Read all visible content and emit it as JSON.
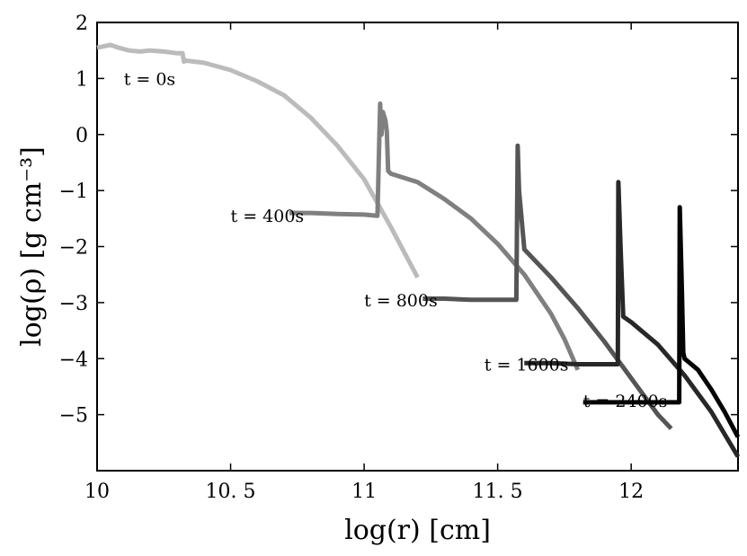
{
  "chart_data": {
    "type": "line",
    "xlabel": "log(r) [cm]",
    "ylabel": "log(ρ) [g cm⁻³]",
    "xlim": [
      10.0,
      12.4
    ],
    "ylim": [
      -6.0,
      2.0
    ],
    "xticks": [
      10.0,
      10.5,
      11.0,
      11.5,
      12.0
    ],
    "xtick_labels": [
      "10",
      "10. 5",
      "11",
      "11. 5",
      "12"
    ],
    "yticks": [
      2,
      1,
      0,
      -1,
      -2,
      -3,
      -4,
      -5
    ],
    "ytick_labels": [
      "2",
      "1",
      "0",
      "−1",
      "−2",
      "−3",
      "−4",
      "−5"
    ],
    "grid": false,
    "series": [
      {
        "name": "t = 0s",
        "color": "#bbbbbb",
        "label_at": [
          10.1,
          1.0
        ],
        "x": [
          10.0,
          10.05,
          10.08,
          10.12,
          10.16,
          10.2,
          10.25,
          10.3,
          10.32,
          10.325,
          10.33,
          10.4,
          10.5,
          10.6,
          10.7,
          10.8,
          10.9,
          11.0,
          11.1,
          11.15,
          11.2
        ],
        "y": [
          1.55,
          1.6,
          1.55,
          1.5,
          1.48,
          1.5,
          1.48,
          1.45,
          1.45,
          1.3,
          1.32,
          1.28,
          1.15,
          0.95,
          0.7,
          0.3,
          -0.2,
          -0.8,
          -1.65,
          -2.1,
          -2.55
        ]
      },
      {
        "name": "t = 400s",
        "color": "#808080",
        "label_at": [
          10.5,
          -1.45
        ],
        "x": [
          10.72,
          10.8,
          10.9,
          11.0,
          11.05,
          11.06,
          11.062,
          11.065,
          11.07,
          11.08,
          11.085,
          11.09,
          11.1,
          11.2,
          11.3,
          11.4,
          11.5,
          11.6,
          11.7,
          11.75,
          11.8
        ],
        "y": [
          -1.4,
          -1.4,
          -1.42,
          -1.43,
          -1.45,
          0.55,
          0.3,
          0.0,
          0.4,
          0.25,
          0.05,
          -0.65,
          -0.7,
          -0.85,
          -1.15,
          -1.5,
          -1.95,
          -2.5,
          -3.2,
          -3.65,
          -4.2
        ]
      },
      {
        "name": "t = 800s",
        "color": "#555555",
        "label_at": [
          11.0,
          -2.95
        ],
        "x": [
          11.22,
          11.3,
          11.4,
          11.5,
          11.57,
          11.575,
          11.58,
          11.6,
          11.7,
          11.8,
          11.9,
          12.0,
          12.1,
          12.15
        ],
        "y": [
          -2.93,
          -2.93,
          -2.95,
          -2.95,
          -2.95,
          -0.2,
          -1.0,
          -2.05,
          -2.55,
          -3.1,
          -3.7,
          -4.35,
          -5.0,
          -5.25
        ]
      },
      {
        "name": "t = 1600s",
        "color": "#282828",
        "label_at": [
          11.45,
          -4.1
        ],
        "x": [
          11.6,
          11.7,
          11.8,
          11.9,
          11.95,
          11.952,
          11.96,
          11.97,
          12.0,
          12.1,
          12.2,
          12.3,
          12.4
        ],
        "y": [
          -4.08,
          -4.08,
          -4.1,
          -4.1,
          -4.1,
          -0.85,
          -2.0,
          -3.25,
          -3.35,
          -3.75,
          -4.3,
          -4.95,
          -5.75
        ]
      },
      {
        "name": "t = 2400s",
        "color": "#050505",
        "label_at": [
          11.82,
          -4.75
        ],
        "x": [
          11.82,
          11.9,
          12.0,
          12.1,
          12.18,
          12.182,
          12.19,
          12.195,
          12.2,
          12.25,
          12.3,
          12.35,
          12.4
        ],
        "y": [
          -4.78,
          -4.78,
          -4.78,
          -4.78,
          -4.78,
          -1.3,
          -2.8,
          -3.9,
          -4.0,
          -4.2,
          -4.55,
          -4.95,
          -5.4
        ]
      }
    ]
  }
}
